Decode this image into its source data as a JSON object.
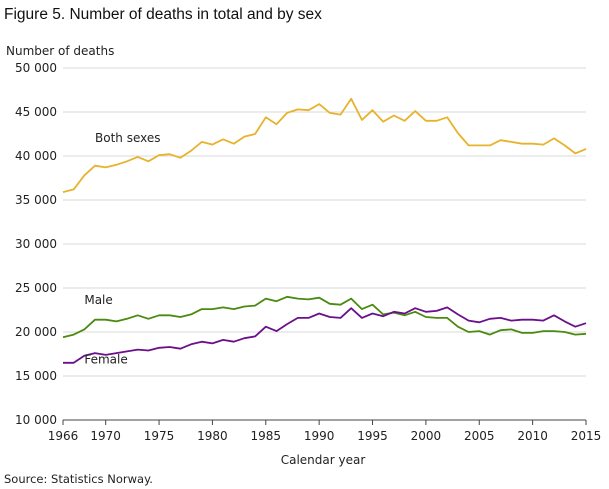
{
  "figure": {
    "title": "Figure 5. Number of deaths in total and by sex",
    "source": "Source: Statistics Norway."
  },
  "colors": {
    "both": "#e8b32c",
    "male": "#4a8a10",
    "female": "#6b0f8a",
    "grid": "#d8d8d8",
    "axis": "#444444"
  },
  "chart_data": {
    "type": "line",
    "ylabel": "Number  of deaths",
    "xlabel": "Calendar  year",
    "xlim": [
      1966,
      2015
    ],
    "ylim": [
      10000,
      50000
    ],
    "x_ticks": [
      1966,
      1970,
      1975,
      1980,
      1985,
      1990,
      1995,
      2000,
      2005,
      2010,
      2015
    ],
    "y_ticks": [
      10000,
      15000,
      20000,
      25000,
      30000,
      35000,
      40000,
      45000,
      50000
    ],
    "y_tick_labels": [
      "10 000",
      "15 000",
      "20 000",
      "25 000",
      "30 000",
      "35 000",
      "40 000",
      "45 000",
      "50 000"
    ],
    "grid": "horizontal",
    "x": [
      1966,
      1967,
      1968,
      1969,
      1970,
      1971,
      1972,
      1973,
      1974,
      1975,
      1976,
      1977,
      1978,
      1979,
      1980,
      1981,
      1982,
      1983,
      1984,
      1985,
      1986,
      1987,
      1988,
      1989,
      1990,
      1991,
      1992,
      1993,
      1994,
      1995,
      1996,
      1997,
      1998,
      1999,
      2000,
      2001,
      2002,
      2003,
      2004,
      2005,
      2006,
      2007,
      2008,
      2009,
      2010,
      2011,
      2012,
      2013,
      2014,
      2015
    ],
    "series": [
      {
        "name": "Both sexes",
        "color": "#e8b32c",
        "label_year": 1969,
        "label_value": 41600,
        "values": [
          35900,
          36200,
          37800,
          38900,
          38700,
          39000,
          39400,
          39900,
          39400,
          40100,
          40200,
          39800,
          40600,
          41600,
          41300,
          41900,
          41400,
          42200,
          42500,
          44400,
          43600,
          44900,
          45300,
          45200,
          45900,
          44900,
          44700,
          46500,
          44100,
          45200,
          43900,
          44600,
          44000,
          45100,
          44000,
          44000,
          44400,
          42600,
          41200,
          41200,
          41200,
          41800,
          41600,
          41400,
          41400,
          41300,
          42000,
          41200,
          40300,
          40800
        ]
      },
      {
        "name": "Male",
        "color": "#4a8a10",
        "label_year": 1968,
        "label_value": 23200,
        "values": [
          19400,
          19700,
          20300,
          21400,
          21400,
          21200,
          21500,
          21900,
          21500,
          21900,
          21900,
          21700,
          22000,
          22600,
          22600,
          22800,
          22600,
          22900,
          23000,
          23800,
          23500,
          24000,
          23800,
          23700,
          23900,
          23200,
          23100,
          23800,
          22600,
          23100,
          22000,
          22200,
          21900,
          22300,
          21700,
          21600,
          21600,
          20600,
          20000,
          20100,
          19700,
          20200,
          20300,
          19900,
          19900,
          20100,
          20100,
          20000,
          19700,
          19800
        ]
      },
      {
        "name": "Female",
        "color": "#6b0f8a",
        "label_year": 1968,
        "label_value": 16400,
        "values": [
          16500,
          16500,
          17300,
          17600,
          17400,
          17600,
          17800,
          18000,
          17900,
          18200,
          18300,
          18100,
          18600,
          18900,
          18700,
          19100,
          18900,
          19300,
          19500,
          20600,
          20100,
          20900,
          21600,
          21600,
          22100,
          21700,
          21600,
          22700,
          21600,
          22100,
          21800,
          22300,
          22100,
          22700,
          22300,
          22400,
          22800,
          22000,
          21300,
          21100,
          21500,
          21600,
          21300,
          21400,
          21400,
          21300,
          21900,
          21200,
          20600,
          21000
        ]
      }
    ]
  }
}
